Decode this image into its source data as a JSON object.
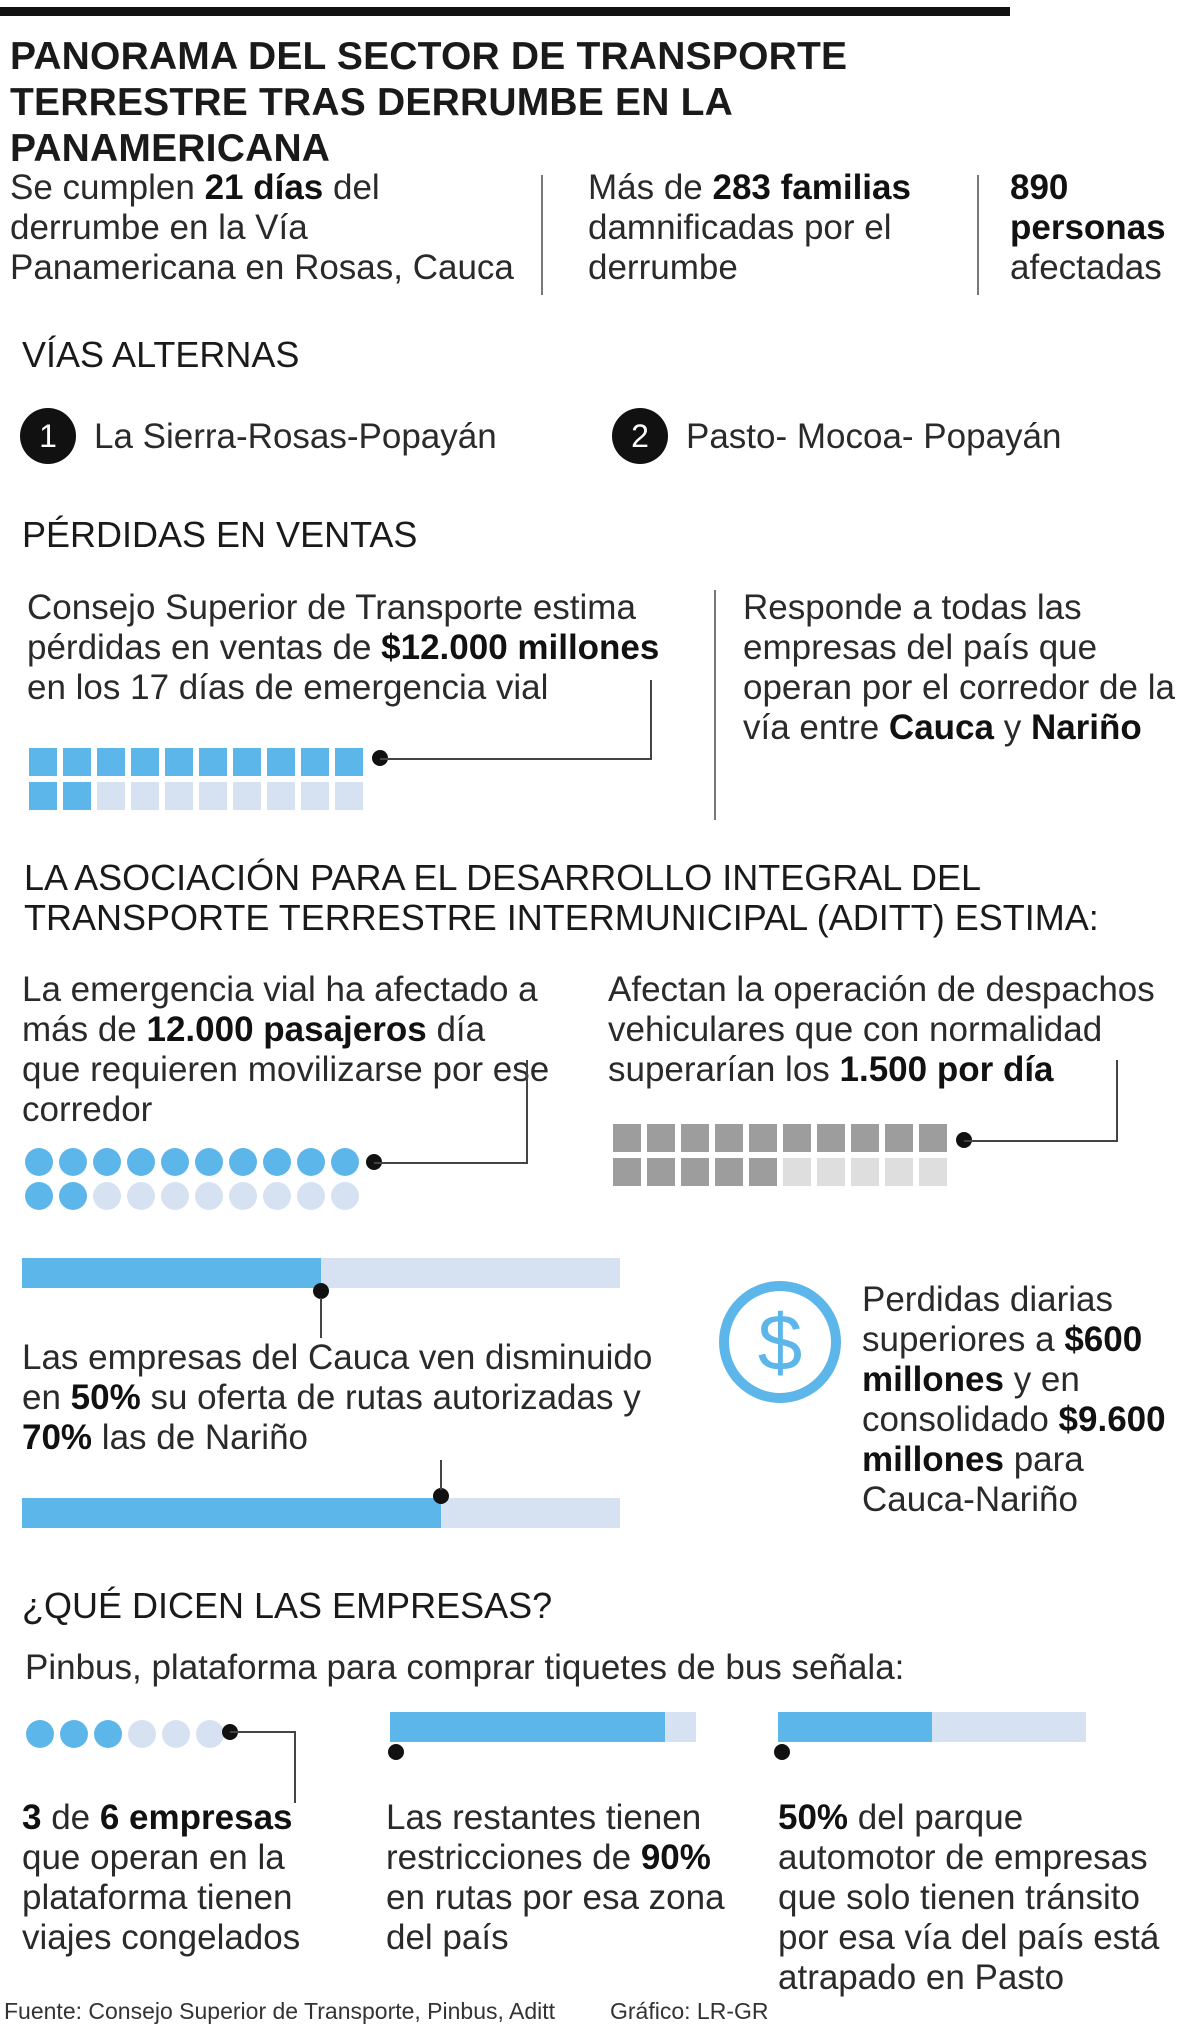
{
  "title": {
    "line1": "PANORAMA DEL SECTOR DE TRANSPORTE",
    "line2": "TERRESTRE TRAS DERRUMBE EN LA PANAMERICANA"
  },
  "stats": [
    {
      "pre": "Se cumplen ",
      "bold": "21 días",
      "post": " del derrumbe en la Vía Panamericana en Rosas, Cauca"
    },
    {
      "pre": "Más de ",
      "bold": "283 familias",
      "post": " damnificadas por el derrumbe"
    },
    {
      "pre": "",
      "bold": "890 personas",
      "post": " afectadas"
    }
  ],
  "vias": {
    "heading": "VÍAS ALTERNAS",
    "routes": [
      {
        "number": "1",
        "label": "La Sierra-Rosas-Popayán"
      },
      {
        "number": "2",
        "label": "Pasto- Mocoa- Popayán"
      }
    ]
  },
  "perdidas": {
    "heading": "PÉRDIDAS EN VENTAS",
    "left_pre": "Consejo Superior de Transporte estima pérdidas en ventas de ",
    "left_bold": "$12.000 millones",
    "left_post": " en los 17 días de emergencia vial",
    "right_pre": "Responde a todas las empresas del país que operan por el corredor de la vía entre ",
    "right_bold1": "Cauca",
    "right_mid": " y ",
    "right_bold2": "Nariño",
    "pictogram": {
      "filled": 12,
      "total": 20
    }
  },
  "aditt": {
    "heading_line1": "LA ASOCIACIÓN PARA EL DESARROLLO INTEGRAL DEL",
    "heading_line2": "TRANSPORTE TERRESTRE INTERMUNICIPAL (ADITT) ESTIMA:",
    "pasajeros_pre": "La emergencia vial ha afectado a más de ",
    "pasajeros_bold": "12.000 pasajeros",
    "pasajeros_post": " día que requieren movilizarse por ese corredor",
    "pasajeros_picto": {
      "filled": 12,
      "total": 20
    },
    "despachos_pre": "Afectan la operación de despachos vehiculares que con normalidad superarían los ",
    "despachos_bold": "1.500 por día",
    "despachos_picto": {
      "filled": 15,
      "total": 20
    },
    "rutas_pre": "Las empresas del Cauca ven disminuido en ",
    "rutas_bold1": "50%",
    "rutas_mid": " su oferta de rutas autorizadas y ",
    "rutas_bold2": "70%",
    "rutas_post": " las de Nariño",
    "bar_cauca": 0.5,
    "bar_narino": 0.7,
    "diarias_pre": "Perdidas diarias superiores a ",
    "diarias_bold1": "$600 millones",
    "diarias_mid": " y en consolidado ",
    "diarias_bold2": "$9.600 millones",
    "diarias_post": " para Cauca-Nariño",
    "icon": "dollar-circle-icon"
  },
  "empresas": {
    "heading": "¿QUÉ DICEN LAS EMPRESAS?",
    "intro": "Pinbus, plataforma para comprar tiquetes de bus señala:",
    "col1_bold1": "3",
    "col1_mid": " de ",
    "col1_bold2": "6 empresas",
    "col1_post": " que operan en la plataforma tienen viajes congelados",
    "col1_picto": {
      "filled": 3,
      "total": 6
    },
    "col2_pre": "Las restantes tienen restricciones de ",
    "col2_bold": "90%",
    "col2_post": " en rutas por esa zona del país",
    "col2_bar": 0.9,
    "col3_bold": "50%",
    "col3_post": " del parque automotor de empresas que solo tienen tránsito por esa vía del país está atrapado en Pasto",
    "col3_bar": 0.5
  },
  "footer": {
    "source": "Fuente: Consejo Superior de Transporte, Pinbus, Aditt",
    "credit": "Gráfico: LR-GR"
  },
  "colors": {
    "blue": "#5cb6ea",
    "light_blue": "#d6e2f2",
    "gray": "#9d9d9d",
    "light_gray": "#dedede"
  }
}
